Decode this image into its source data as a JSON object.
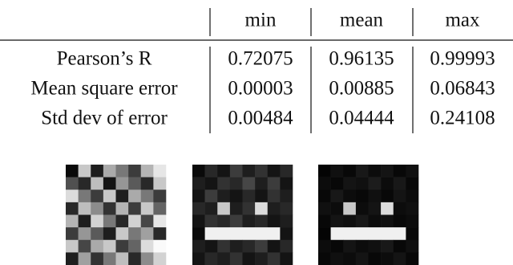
{
  "table": {
    "header": [
      "min",
      "mean",
      "max"
    ],
    "rows": [
      {
        "label": "Pearson’s R",
        "values": [
          "0.72075",
          "0.96135",
          "0.99993"
        ]
      },
      {
        "label": "Mean square error",
        "values": [
          "0.00003",
          "0.00885",
          "0.06843"
        ]
      },
      {
        "label": "Std dev of error",
        "values": [
          "0.00484",
          "0.04444",
          "0.24108"
        ]
      }
    ]
  }
}
